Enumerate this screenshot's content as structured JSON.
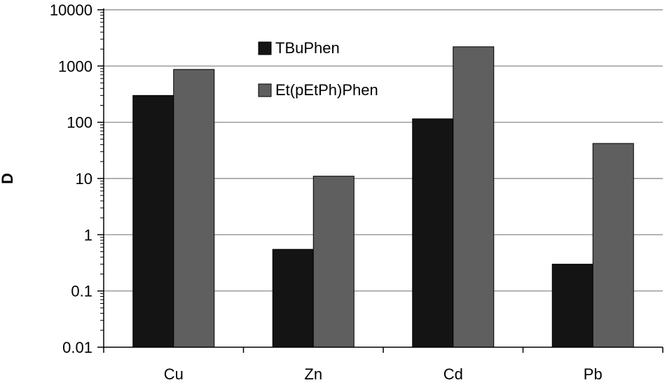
{
  "chart_data": {
    "type": "bar",
    "ylabel": "D",
    "xlabel": "",
    "yscale": "log",
    "ylim": [
      0.01,
      10000
    ],
    "yticks": [
      "0.01",
      "0.1",
      "1",
      "10",
      "100",
      "1000",
      "10000"
    ],
    "categories": [
      "Cu",
      "Zn",
      "Cd",
      "Pb"
    ],
    "series": [
      {
        "name": "TBuPhen",
        "values": [
          300,
          0.55,
          115,
          0.3
        ]
      },
      {
        "name": "Et(pEtPh)Phen",
        "values": [
          870,
          11,
          2200,
          42
        ]
      }
    ],
    "grid": "horizontal major gridlines",
    "legend_position": "top-center inside plot"
  },
  "colors": {
    "series": [
      "#141414",
      "#5f5f5f"
    ],
    "axis": "#000000",
    "grid": "#808080",
    "bar_edge": "#000000"
  }
}
